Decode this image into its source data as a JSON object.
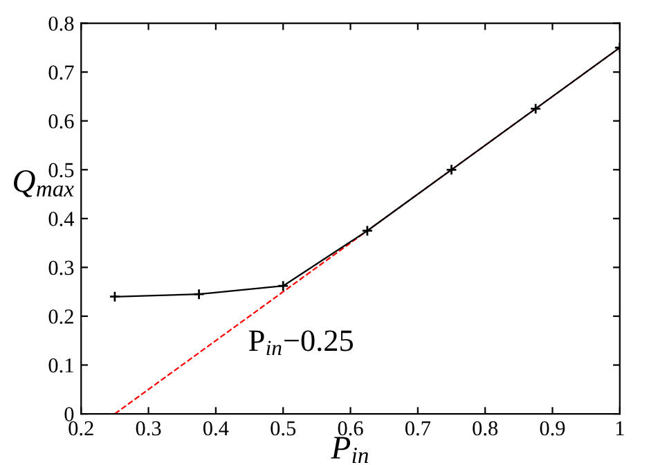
{
  "chart_data": {
    "type": "line",
    "xlabel": "P$_{in}$",
    "ylabel": "Q$_{max}$",
    "xlim": [
      0.2,
      1
    ],
    "ylim": [
      0,
      0.8
    ],
    "xticks": [
      0.2,
      0.3,
      0.4,
      0.5,
      0.6,
      0.7,
      0.8,
      0.9,
      1
    ],
    "yticks": [
      0,
      0.1,
      0.2,
      0.3,
      0.4,
      0.5,
      0.6,
      0.7,
      0.8
    ],
    "grid": false,
    "legend": false,
    "series": [
      {
        "color": "#ff0000",
        "x": [
          0.25,
          1
        ],
        "values": [
          0,
          0.75
        ],
        "line_style": "dashed",
        "marker": "none"
      },
      {
        "color": "#000000",
        "x": [
          0.25,
          0.375,
          0.5,
          0.625,
          0.75,
          0.875,
          1
        ],
        "values": [
          0.24,
          0.245,
          0.262,
          0.375,
          0.5,
          0.625,
          0.75
        ],
        "line_style": "solid",
        "marker": "cross"
      }
    ],
    "annotations": [
      "P$_{in}$−0.25"
    ]
  }
}
